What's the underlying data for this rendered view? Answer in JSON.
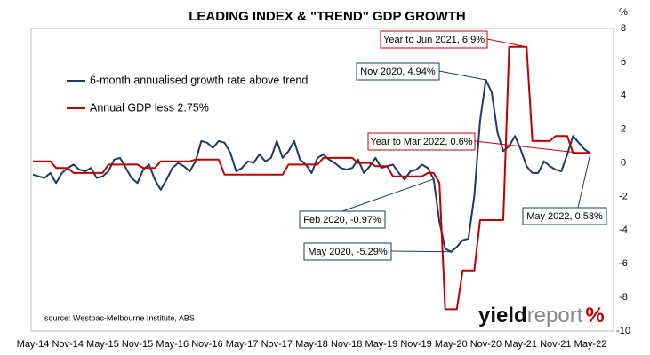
{
  "chart_data": {
    "type": "line",
    "title": "LEADING INDEX & \"TREND\" GDP GROWTH",
    "y_unit": "%",
    "source": "source: Westpac-Melbourne Institute, ABS",
    "logo": {
      "first": "yield",
      "second": "report",
      "symbol": "%"
    },
    "categories": [
      "May-14",
      null,
      null,
      null,
      null,
      null,
      "Nov-14",
      null,
      null,
      null,
      null,
      null,
      "May-15",
      null,
      null,
      null,
      null,
      null,
      "Nov-15",
      null,
      null,
      null,
      null,
      null,
      "May-16",
      null,
      null,
      null,
      null,
      null,
      "Nov-16",
      null,
      null,
      null,
      null,
      null,
      "May-17",
      null,
      null,
      null,
      null,
      null,
      "Nov-17",
      null,
      null,
      null,
      null,
      null,
      "May-18",
      null,
      null,
      null,
      null,
      null,
      "Nov-18",
      null,
      null,
      null,
      null,
      null,
      "May-19",
      null,
      null,
      null,
      null,
      null,
      "Nov-19",
      null,
      null,
      null,
      null,
      null,
      "May-20",
      null,
      null,
      null,
      null,
      null,
      "Nov-20",
      null,
      null,
      null,
      null,
      null,
      "May-21",
      null,
      null,
      null,
      null,
      null,
      "Nov-21",
      null,
      null,
      null,
      null,
      null,
      "May-22"
    ],
    "series": [
      {
        "name": "6-month annualised growth rate above trend",
        "color": "#1f3864",
        "values": [
          -0.7,
          -0.8,
          -0.9,
          -0.6,
          -1.2,
          -0.6,
          -0.3,
          -0.1,
          -0.4,
          -0.5,
          -0.3,
          -0.9,
          -0.8,
          -0.5,
          0.2,
          0.3,
          -0.3,
          -0.9,
          -1.2,
          -0.4,
          -0.1,
          -1.0,
          -1.6,
          -1.0,
          -0.3,
          0.0,
          -0.2,
          -0.5,
          0.1,
          1.3,
          1.2,
          0.9,
          1.3,
          1.2,
          0.6,
          -0.5,
          -0.3,
          0.1,
          0.0,
          0.5,
          0.1,
          0.3,
          1.3,
          0.3,
          0.7,
          1.3,
          0.2,
          -0.1,
          -0.6,
          0.3,
          0.5,
          0.2,
          0.0,
          -0.3,
          -0.4,
          -0.3,
          0.2,
          -0.6,
          -0.2,
          0.3,
          -0.3,
          -0.2,
          -0.1,
          -0.6,
          -1.0,
          -0.5,
          -0.4,
          -0.1,
          -0.3,
          -0.97,
          -3.5,
          -5.1,
          -5.29,
          -5.0,
          -4.6,
          -4.5,
          -2.0,
          2.5,
          4.94,
          4.2,
          1.8,
          0.7,
          1.0,
          1.6,
          0.8,
          -0.2,
          -0.6,
          -0.6,
          0.1,
          -0.2,
          -0.4,
          -0.5,
          0.5,
          1.6,
          1.2,
          0.8,
          0.58
        ]
      },
      {
        "name": "Annual GDP less 2.75%",
        "color": "#c00000",
        "values": [
          0.1,
          0.1,
          0.1,
          0.1,
          -0.3,
          -0.3,
          -0.3,
          -0.6,
          -0.6,
          -0.6,
          -0.6,
          -0.6,
          -0.6,
          -0.1,
          -0.1,
          -0.1,
          -0.1,
          -0.1,
          -0.1,
          -0.3,
          -0.3,
          -0.3,
          0.1,
          0.1,
          0.1,
          0.1,
          0.1,
          0.1,
          0.2,
          0.2,
          0.2,
          0.2,
          0.2,
          -0.7,
          -0.7,
          -0.7,
          -0.7,
          -0.7,
          -0.7,
          -0.7,
          -0.7,
          -0.7,
          -0.7,
          -0.7,
          -0.1,
          -0.1,
          -0.1,
          -0.1,
          -0.1,
          -0.1,
          0.3,
          0.3,
          0.3,
          0.3,
          0.3,
          0.3,
          0.0,
          0.0,
          0.0,
          -0.2,
          -0.2,
          -0.2,
          -0.8,
          -0.8,
          -0.8,
          -0.8,
          -0.8,
          -0.8,
          -0.6,
          -0.6,
          -1.2,
          -8.7,
          -8.7,
          -8.7,
          -6.4,
          -6.4,
          -6.4,
          -3.4,
          -3.4,
          -3.4,
          -3.4,
          -3.4,
          6.9,
          6.9,
          6.9,
          6.9,
          1.3,
          1.3,
          1.3,
          1.3,
          1.6,
          1.6,
          1.6,
          0.6,
          0.6,
          0.6,
          0.6
        ]
      }
    ],
    "annotations": [
      "Year to Jun 2021, 6.9%",
      "Nov 2020, 4.94%",
      "Year to Mar 2022, 0.6%",
      "Feb 2020, -0.97%",
      "May 2020, -5.29%",
      "May 2022, 0.58%"
    ],
    "ylim": [
      -10,
      8
    ],
    "yticks": [
      8,
      6,
      4,
      2,
      0,
      -2,
      -4,
      -6,
      -8,
      -10
    ],
    "y_axis_side": "right",
    "grid": false
  }
}
